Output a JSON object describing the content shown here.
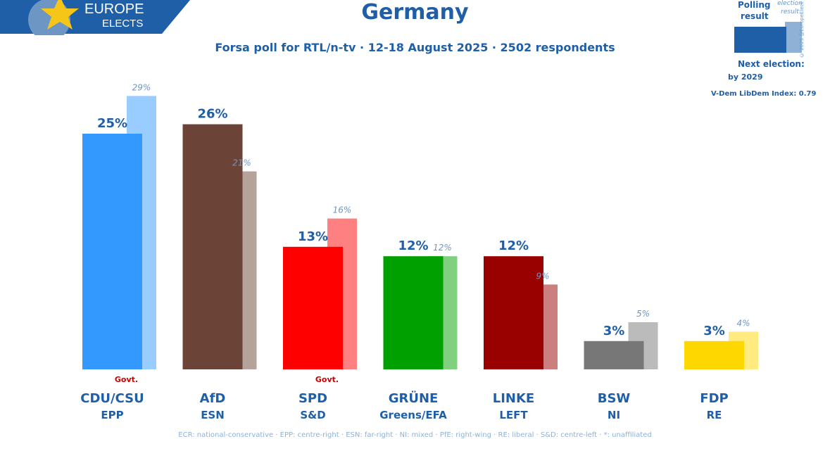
{
  "logo": {
    "line1": "EUROPE",
    "line2": "ELECTS"
  },
  "header": {
    "title": "Germany",
    "subtitle": "Forsa poll for RTL/n-tv · 12-18 August 2025 · 2502 respondents"
  },
  "legend": {
    "polling_line1": "Polling",
    "polling_line2": "result",
    "election_line1": "election",
    "election_line2": "result",
    "next_line1": "Next election:",
    "next_line2": "by 2029",
    "vdem": "V-Dem LibDem Index: 0.79",
    "copyright": "© 2025 @EuropeElects"
  },
  "footer": {
    "groups_note": "ECR: national-conservative · EPP: centre-right · ESN: far-right · NI: mixed · PfE: right-wing · RE: liberal · S&D: centre-left · *: unaffiliated"
  },
  "chart_data": {
    "type": "bar",
    "categories": [
      "CDU/CSU",
      "AfD",
      "SPD",
      "GRÜNE",
      "LINKE",
      "BSW",
      "FDP"
    ],
    "groups": [
      "EPP",
      "ESN",
      "S&D",
      "Greens/EFA",
      "LEFT",
      "NI",
      "RE"
    ],
    "series": [
      {
        "name": "Polling result",
        "values": [
          25,
          26,
          13,
          12,
          12,
          3,
          3
        ],
        "labels": [
          "25%",
          "26%",
          "13%",
          "12%",
          "12%",
          "3%",
          "3%"
        ]
      },
      {
        "name": "election result",
        "values": [
          29,
          21,
          16,
          12,
          9,
          5,
          4
        ],
        "labels": [
          "29%",
          "21%",
          "16%",
          "12%",
          "9%",
          "5%",
          "4%"
        ]
      }
    ],
    "govt_label": "Govt.",
    "govt": [
      true,
      false,
      true,
      false,
      false,
      false,
      false
    ],
    "colors": [
      "#3399ff",
      "#6b4437",
      "#ff0000",
      "#00a000",
      "#990000",
      "#777777",
      "#ffd700"
    ],
    "light_colors": [
      "#99ccff",
      "#b5a29b",
      "#ff8080",
      "#80d080",
      "#cc7f7f",
      "#bbbbbb",
      "#ffeb80"
    ],
    "ylim": [
      0,
      30
    ]
  }
}
